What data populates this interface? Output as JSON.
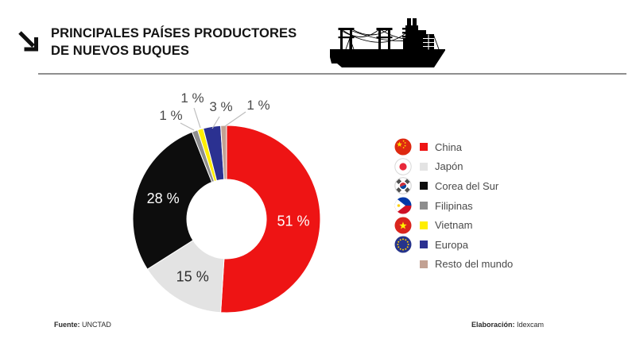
{
  "header": {
    "title_line1": "PRINCIPALES PAÍSES PRODUCTORES",
    "title_line2": "DE NUEVOS BUQUES",
    "arrow_icon": "diagonal-arrow-down-right",
    "ship_icon": "cargo-ship"
  },
  "chart_data": {
    "type": "pie",
    "subtype": "donut",
    "title": "Principales países productores de nuevos buques",
    "unit": "percent",
    "legend_position": "right",
    "start_angle_deg": 0,
    "direction": "clockwise",
    "series": [
      {
        "label": "China",
        "value": 51,
        "display": "51 %",
        "color": "#ee1414",
        "flag_icon": "china-flag-icon"
      },
      {
        "label": "Japón",
        "value": 15,
        "display": "15 %",
        "color": "#e3e3e3",
        "flag_icon": "japan-flag-icon"
      },
      {
        "label": "Corea del Sur",
        "value": 28,
        "display": "28 %",
        "color": "#0d0d0d",
        "flag_icon": "south-korea-flag-icon"
      },
      {
        "label": "Filipinas",
        "value": 1,
        "display": "1 %",
        "color": "#8d8d8d",
        "flag_icon": "philippines-flag-icon"
      },
      {
        "label": "Vietnam",
        "value": 1,
        "display": "1 %",
        "color": "#ffee00",
        "flag_icon": "vietnam-flag-icon"
      },
      {
        "label": "Europa",
        "value": 3,
        "display": "3 %",
        "color": "#2b3191",
        "flag_icon": "europe-flag-icon"
      },
      {
        "label": "Resto del mundo",
        "value": 1,
        "display": "1 %",
        "color": "#c2a193",
        "flag_icon": null
      }
    ]
  },
  "footer": {
    "source_label": "Fuente:",
    "source_value": "UNCTAD",
    "elaboration_label": "Elaboración:",
    "elaboration_value": "Idexcam"
  }
}
